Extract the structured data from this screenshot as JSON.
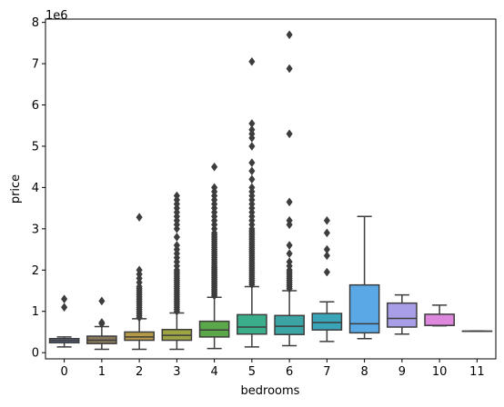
{
  "chart_data": {
    "type": "box",
    "xlabel": "bedrooms",
    "ylabel": "price",
    "y_offset_label": "1e6",
    "ylim": [
      -150000,
      8080000
    ],
    "yticks": [
      0,
      1000000,
      2000000,
      3000000,
      4000000,
      5000000,
      6000000,
      7000000,
      8000000
    ],
    "ytick_labels": [
      "0",
      "1",
      "2",
      "3",
      "4",
      "5",
      "6",
      "7",
      "8"
    ],
    "categories": [
      "0",
      "1",
      "2",
      "3",
      "4",
      "5",
      "6",
      "7",
      "8",
      "9",
      "10",
      "11"
    ],
    "boxes": [
      {
        "category": "0",
        "color": "#5a6e8f",
        "whisker_low": 140000,
        "q1": 240000,
        "median": 290000,
        "q3": 340000,
        "whisker_high": 380000,
        "outliers": [
          1100000,
          1300000
        ]
      },
      {
        "category": "1",
        "color": "#8a7a5c",
        "whisker_low": 80000,
        "q1": 220000,
        "median": 300000,
        "q3": 400000,
        "whisker_high": 630000,
        "outliers": [
          700000,
          730000,
          1250000
        ]
      },
      {
        "category": "2",
        "color": "#b59a48",
        "whisker_low": 80000,
        "q1": 300000,
        "median": 380000,
        "q3": 500000,
        "whisker_high": 820000,
        "outliers": [
          850000,
          900000,
          950000,
          1000000,
          1050000,
          1100000,
          1150000,
          1200000,
          1250000,
          1300000,
          1350000,
          1400000,
          1450000,
          1500000,
          1550000,
          1600000,
          1700000,
          1800000,
          1900000,
          2000000,
          3280000
        ]
      },
      {
        "category": "3",
        "color": "#9ea344",
        "whisker_low": 80000,
        "q1": 300000,
        "median": 420000,
        "q3": 560000,
        "whisker_high": 960000,
        "outliers": [
          1000000,
          1050000,
          1100000,
          1150000,
          1200000,
          1250000,
          1300000,
          1350000,
          1400000,
          1450000,
          1500000,
          1550000,
          1600000,
          1650000,
          1700000,
          1750000,
          1800000,
          1850000,
          1900000,
          1950000,
          2000000,
          2100000,
          2200000,
          2300000,
          2400000,
          2500000,
          2600000,
          2800000,
          3000000,
          3100000,
          3200000,
          3300000,
          3400000,
          3500000,
          3600000,
          3700000,
          3800000
        ]
      },
      {
        "category": "4",
        "color": "#5aa84a",
        "whisker_low": 100000,
        "q1": 380000,
        "median": 550000,
        "q3": 760000,
        "whisker_high": 1340000,
        "outliers": [
          1380000,
          1420000,
          1460000,
          1500000,
          1540000,
          1580000,
          1620000,
          1660000,
          1700000,
          1740000,
          1780000,
          1820000,
          1860000,
          1900000,
          1940000,
          1980000,
          2020000,
          2060000,
          2100000,
          2150000,
          2200000,
          2250000,
          2300000,
          2350000,
          2400000,
          2450000,
          2500000,
          2550000,
          2600000,
          2650000,
          2700000,
          2750000,
          2800000,
          2850000,
          2900000,
          3000000,
          3100000,
          3200000,
          3300000,
          3400000,
          3500000,
          3600000,
          3700000,
          3800000,
          3900000,
          4000000,
          4500000
        ]
      },
      {
        "category": "5",
        "color": "#3aae8a",
        "whisker_low": 140000,
        "q1": 450000,
        "median": 620000,
        "q3": 920000,
        "whisker_high": 1600000,
        "outliers": [
          1650000,
          1700000,
          1750000,
          1800000,
          1850000,
          1900000,
          1950000,
          2000000,
          2050000,
          2100000,
          2150000,
          2200000,
          2250000,
          2300000,
          2350000,
          2400000,
          2450000,
          2500000,
          2550000,
          2600000,
          2650000,
          2700000,
          2750000,
          2800000,
          2850000,
          2900000,
          2950000,
          3000000,
          3100000,
          3200000,
          3300000,
          3400000,
          3500000,
          3600000,
          3700000,
          3800000,
          3900000,
          4000000,
          4200000,
          4400000,
          4600000,
          5000000,
          5200000,
          5300000,
          5400000,
          5550000,
          7050000
        ]
      },
      {
        "category": "6",
        "color": "#3ba5a5",
        "whisker_low": 170000,
        "q1": 440000,
        "median": 640000,
        "q3": 900000,
        "whisker_high": 1500000,
        "outliers": [
          1550000,
          1600000,
          1650000,
          1700000,
          1750000,
          1800000,
          1850000,
          1900000,
          1950000,
          2000000,
          2100000,
          2200000,
          2400000,
          2600000,
          3100000,
          3200000,
          3650000,
          5300000,
          6880000,
          7700000
        ]
      },
      {
        "category": "7",
        "color": "#3aa4b8",
        "whisker_low": 270000,
        "q1": 550000,
        "median": 730000,
        "q3": 950000,
        "whisker_high": 1230000,
        "outliers": [
          1950000,
          2350000,
          2500000,
          2900000,
          3200000
        ]
      },
      {
        "category": "8",
        "color": "#5aa9e6",
        "whisker_low": 340000,
        "q1": 480000,
        "median": 700000,
        "q3": 1640000,
        "whisker_high": 3300000,
        "outliers": []
      },
      {
        "category": "9",
        "color": "#a89ee8",
        "whisker_low": 450000,
        "q1": 620000,
        "median": 830000,
        "q3": 1200000,
        "whisker_high": 1400000,
        "outliers": []
      },
      {
        "category": "10",
        "color": "#dd88dd",
        "whisker_low": 650000,
        "q1": 660000,
        "median": 660000,
        "q3": 930000,
        "whisker_high": 1150000,
        "outliers": []
      },
      {
        "category": "11",
        "color": "#e07fb0",
        "whisker_low": 520000,
        "q1": 520000,
        "median": 520000,
        "q3": 520000,
        "whisker_high": 520000,
        "outliers": []
      }
    ],
    "grid": false,
    "legend": "none"
  }
}
